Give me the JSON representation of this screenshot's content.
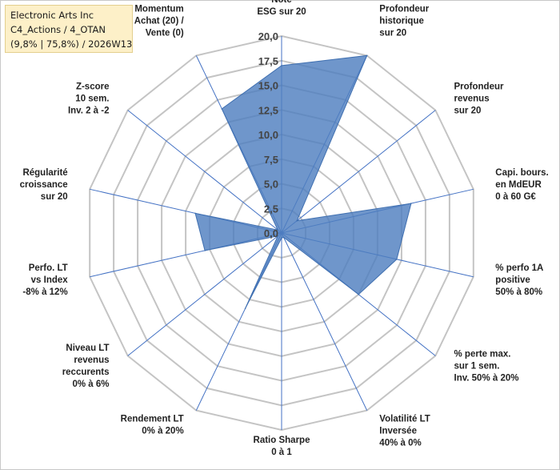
{
  "title_box": {
    "line1": "Electronic Arts Inc",
    "line2": "C4_Actions / 4_OTAN",
    "line3": "(9,8% | 75,8%) / 2026W13"
  },
  "colors": {
    "fill": "#4f7fbf",
    "stroke": "#3f6fb0",
    "grid": "#c4c4c4",
    "spoke": "#4472c4",
    "title_bg": "#fdf0c8"
  },
  "chart_data": {
    "type": "radar",
    "rmax": 20,
    "ticks": [
      "0,0",
      "2,5",
      "5,0",
      "7,5",
      "10,0",
      "12,5",
      "15,0",
      "17,5",
      "20,0"
    ],
    "tick_values": [
      0,
      2.5,
      5,
      7.5,
      10,
      12.5,
      15,
      17.5,
      20
    ],
    "axes": [
      {
        "label": [
          "Note",
          "ESG sur 20"
        ],
        "value": 17.0
      },
      {
        "label": [
          "Profondeur",
          "historique",
          "sur 20"
        ],
        "value": 20.0
      },
      {
        "label": [
          "Profondeur",
          "revenus",
          "sur 20"
        ],
        "value": 2.0
      },
      {
        "label": [
          "Capi. bours.",
          "en MdEUR",
          "0 à 60 G€"
        ],
        "value": 13.5
      },
      {
        "label": [
          "% perfo 1A",
          "positive",
          "50% à 80%"
        ],
        "value": 12.0
      },
      {
        "label": [
          "% perte max.",
          "sur 1 sem.",
          "Inv. 50% à 20%"
        ],
        "value": 10.0
      },
      {
        "label": [
          "Volatilité LT",
          "Inversée",
          "40% à 0%"
        ],
        "value": 0.5
      },
      {
        "label": [
          "Ratio Sharpe",
          "0 à 1"
        ],
        "value": 0.5
      },
      {
        "label": [
          "Rendement LT",
          "0% à 20%"
        ],
        "value": 8.5
      },
      {
        "label": [
          "Niveau LT",
          "revenus",
          "reccurents",
          "0% à 6%"
        ],
        "value": 0.5
      },
      {
        "label": [
          "Perfo. LT",
          "vs Index",
          "-8% à 12%"
        ],
        "value": 8.0
      },
      {
        "label": [
          "Régularité",
          "croissance",
          "sur 20"
        ],
        "value": 9.0
      },
      {
        "label": [
          "Z-score",
          "10 sem.",
          "Inv. 2 à -2"
        ],
        "value": 0.5
      },
      {
        "label": [
          "Momentum",
          "Achat (20) /",
          "Vente (0)"
        ],
        "value": 14.0
      }
    ]
  }
}
